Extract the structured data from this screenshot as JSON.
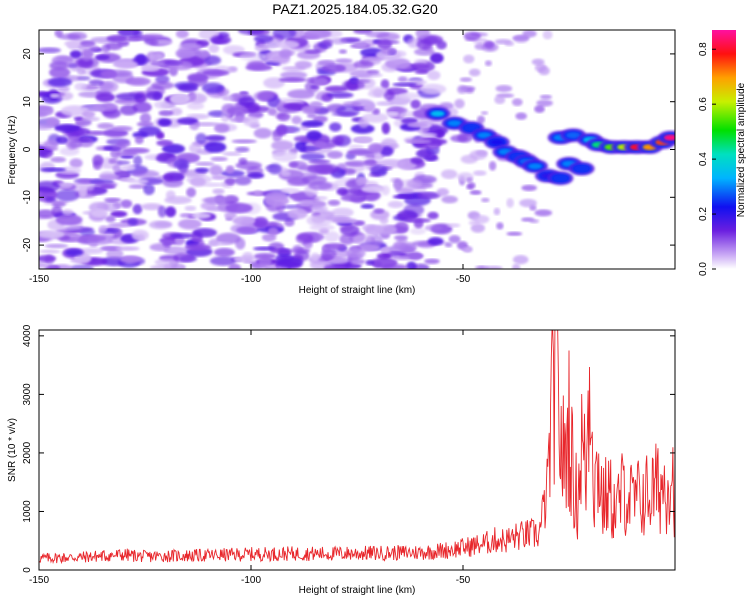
{
  "page": {
    "title": "PAZ1.2025.184.05.32.G20"
  },
  "chart_data": [
    {
      "type": "heatmap",
      "xlabel": "Height of straight line (km)",
      "ylabel": "Frequency (Hz)",
      "xlim": [
        -150,
        0
      ],
      "ylim": [
        -25,
        25
      ],
      "xticks": [
        -150,
        -100,
        -50
      ],
      "yticks": [
        -20,
        -10,
        0,
        10,
        20
      ],
      "colorbar": {
        "label": "Normalized spectral amplitude",
        "range": [
          0,
          0.87
        ],
        "ticks": [
          0.0,
          0.2,
          0.4,
          0.6,
          0.8
        ],
        "colormap": "rainbow-white-to-magenta"
      },
      "noise_background": {
        "x_range": [
          -150,
          -55
        ],
        "y_range": [
          -25,
          25
        ],
        "typical_amplitude": 0.1
      },
      "signal_track": [
        {
          "x": -56,
          "y": 7.5,
          "amplitude": 0.35
        },
        {
          "x": -52,
          "y": 5.5,
          "amplitude": 0.3
        },
        {
          "x": -48,
          "y": 4.5,
          "amplitude": 0.25
        },
        {
          "x": -45,
          "y": 3,
          "amplitude": 0.3
        },
        {
          "x": -42,
          "y": 1.5,
          "amplitude": 0.22
        },
        {
          "x": -40,
          "y": -0.5,
          "amplitude": 0.3
        },
        {
          "x": -37,
          "y": -1.5,
          "amplitude": 0.25
        },
        {
          "x": -35,
          "y": -2.5,
          "amplitude": 0.28
        },
        {
          "x": -33,
          "y": -3.5,
          "amplitude": 0.3
        },
        {
          "x": -30,
          "y": -5.5,
          "amplitude": 0.2
        },
        {
          "x": -27,
          "y": -6,
          "amplitude": 0.25
        },
        {
          "x": -25,
          "y": -3,
          "amplitude": 0.3
        },
        {
          "x": -22,
          "y": -4,
          "amplitude": 0.25
        },
        {
          "x": -27,
          "y": 2.5,
          "amplitude": 0.3
        },
        {
          "x": -24,
          "y": 3,
          "amplitude": 0.28
        },
        {
          "x": -20,
          "y": 2,
          "amplitude": 0.35
        },
        {
          "x": -18,
          "y": 1,
          "amplitude": 0.45
        },
        {
          "x": -15,
          "y": 0.5,
          "amplitude": 0.55
        },
        {
          "x": -12,
          "y": 0.5,
          "amplitude": 0.6
        },
        {
          "x": -9,
          "y": 0.5,
          "amplitude": 0.8
        },
        {
          "x": -6,
          "y": 0.5,
          "amplitude": 0.7
        },
        {
          "x": -3,
          "y": 1.5,
          "amplitude": 0.75
        },
        {
          "x": -1,
          "y": 2.5,
          "amplitude": 0.85
        }
      ]
    },
    {
      "type": "line",
      "xlabel": "Height of straight line (km)",
      "ylabel": "SNR (10 * v/v)",
      "xlim": [
        -150,
        0
      ],
      "ylim": [
        0,
        4100
      ],
      "xticks": [
        -150,
        -100,
        -50
      ],
      "yticks": [
        0,
        1000,
        2000,
        3000,
        4000
      ],
      "color": "#e8262b",
      "series": [
        {
          "x": [
            -150,
            -140,
            -130,
            -125,
            -120,
            -110,
            -100,
            -90,
            -80,
            -70,
            -60,
            -55,
            -50,
            -45,
            -42,
            -40,
            -38,
            -35,
            -32,
            -30,
            -29,
            -28,
            -27,
            -26,
            -25,
            -24,
            -23,
            -22,
            -21,
            -20,
            -19,
            -18,
            -17,
            -16,
            -15,
            -14,
            -12,
            -10,
            -8,
            -6,
            -4,
            -2,
            -1,
            0
          ],
          "y": [
            200,
            220,
            260,
            230,
            240,
            250,
            270,
            280,
            280,
            290,
            300,
            330,
            380,
            450,
            520,
            500,
            560,
            600,
            620,
            1400,
            3000,
            4100,
            2200,
            1800,
            2600,
            1500,
            1200,
            2200,
            1600,
            3700,
            1400,
            1800,
            1100,
            1300,
            1200,
            1000,
            1400,
            1150,
            1250,
            1300,
            1400,
            1500,
            1800,
            1300
          ]
        }
      ]
    }
  ]
}
